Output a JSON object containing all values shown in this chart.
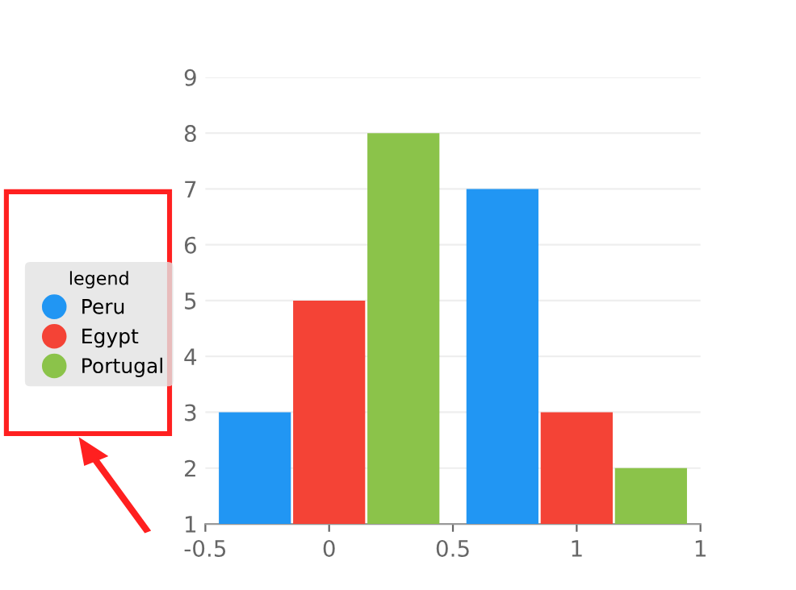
{
  "chart_data": {
    "type": "bar",
    "x": [
      0,
      1
    ],
    "series": [
      {
        "name": "Peru",
        "color": "#2196f3",
        "values": [
          3,
          7
        ]
      },
      {
        "name": "Egypt",
        "color": "#f44336",
        "values": [
          5,
          3
        ]
      },
      {
        "name": "Portugal",
        "color": "#8bc34a",
        "values": [
          8,
          2
        ]
      }
    ],
    "xlim": [
      -0.5,
      1.5
    ],
    "xticks": [
      -0.5,
      0,
      0.5,
      1,
      {
        "value": 1.5,
        "label": "1"
      }
    ],
    "ylim": [
      1,
      9
    ],
    "yticks": [
      1,
      2,
      3,
      4,
      5,
      6,
      7,
      8,
      9
    ],
    "grid": "y",
    "legend": "left",
    "legend_title": "legend"
  }
}
